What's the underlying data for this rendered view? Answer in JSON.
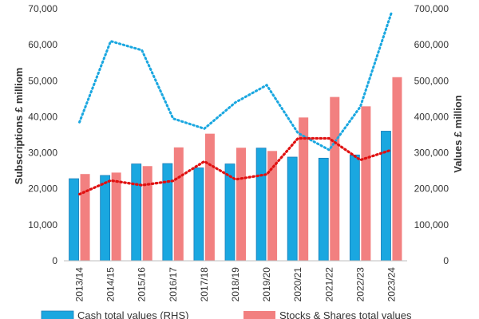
{
  "chart_data": {
    "type": "bar",
    "categories": [
      "2013/14",
      "2014/15",
      "2015/16",
      "2016/17",
      "2017/18",
      "2018/19",
      "2019/20",
      "2020/21",
      "2021/22",
      "2022/23",
      "2023/24"
    ],
    "ylabel_left": "Subscriptions £ milliom",
    "ylabel_right": "Values £ million",
    "ylim_left": [
      0,
      70000
    ],
    "ylim_right": [
      0,
      700000
    ],
    "yticks_left": [
      "0",
      "10,000",
      "20,000",
      "30,000",
      "40,000",
      "50,000",
      "60,000",
      "70,000"
    ],
    "yticks_right": [
      "0",
      "100,000",
      "200,000",
      "300,000",
      "400,000",
      "500,000",
      "600,000",
      "700,000"
    ],
    "grid": false,
    "legend_position": "bottom",
    "series": [
      {
        "name": "Cash total values (RHS)",
        "kind": "bar",
        "axis": "right",
        "color": "#1aa7e0",
        "values": [
          228000,
          237000,
          269000,
          270000,
          258000,
          269000,
          313000,
          288000,
          285000,
          294000,
          360000
        ]
      },
      {
        "name": "Stocks & Shares total values",
        "kind": "bar",
        "axis": "right",
        "color": "#f28080",
        "values": [
          241000,
          245000,
          263000,
          315000,
          353000,
          314000,
          305000,
          398000,
          455000,
          429000,
          510000
        ]
      },
      {
        "name": "",
        "kind": "line",
        "style": "dotted",
        "axis": "left",
        "color": "#1aa7e0",
        "values": [
          38500,
          61000,
          58500,
          39500,
          36700,
          44000,
          48800,
          35500,
          30800,
          42800,
          69000
        ]
      },
      {
        "name": "",
        "kind": "line",
        "style": "dotted",
        "axis": "left",
        "color": "#e01010",
        "values": [
          18500,
          22300,
          21000,
          22200,
          27600,
          22600,
          24000,
          34000,
          34000,
          28000,
          30800
        ]
      }
    ]
  }
}
